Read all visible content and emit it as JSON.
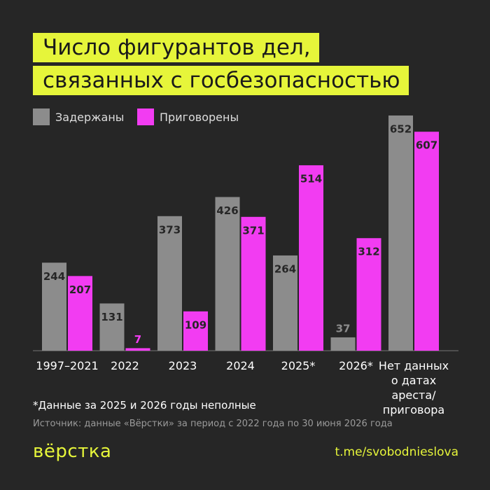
{
  "chart_data": {
    "type": "bar",
    "title": "Число фигурантов дел,\nсвязанных с госбезопасностью",
    "categories": [
      "1997–2021",
      "2022",
      "2023",
      "2024",
      "2025*",
      "2026*",
      "Нет данных\nо датах\nареста/\nприговора"
    ],
    "series": [
      {
        "name": "Задержаны",
        "color": "#8c8c8c",
        "values": [
          244,
          131,
          373,
          426,
          264,
          37,
          652
        ]
      },
      {
        "name": "Приговорены",
        "color": "#f23cf2",
        "values": [
          207,
          7,
          109,
          371,
          514,
          312,
          607
        ]
      }
    ],
    "ylim": [
      0,
      652
    ],
    "note": "*Данные за 2025 и 2026 годы неполные",
    "source": "Источник: данные «Вёрстки» за период с 2022 года по 30 июня 2026 года",
    "logo": "вёрстка",
    "link": "t.me/svobodnieslova"
  }
}
